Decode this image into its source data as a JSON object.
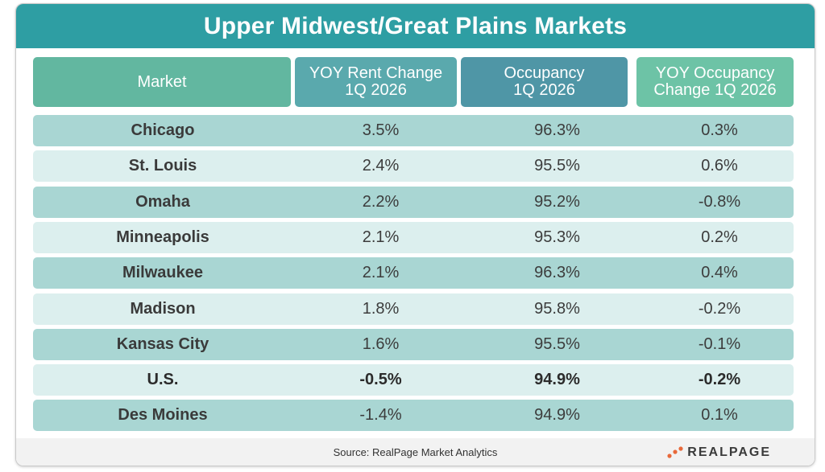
{
  "chart_data": {
    "type": "table",
    "title": "Upper Midwest/Great Plains Markets",
    "columns": [
      "Market",
      "YOY Rent Change\n1Q 2026",
      "Occupancy\n1Q 2026",
      "YOY Occupancy\nChange 1Q 2026"
    ],
    "rows": [
      {
        "market": "Chicago",
        "rent_change": "3.5%",
        "occupancy": "96.3%",
        "occ_change": "0.3%"
      },
      {
        "market": "St. Louis",
        "rent_change": "2.4%",
        "occupancy": "95.5%",
        "occ_change": "0.6%"
      },
      {
        "market": "Omaha",
        "rent_change": "2.2%",
        "occupancy": "95.2%",
        "occ_change": "-0.8%"
      },
      {
        "market": "Minneapolis",
        "rent_change": "2.1%",
        "occupancy": "95.3%",
        "occ_change": "0.2%"
      },
      {
        "market": "Milwaukee",
        "rent_change": "2.1%",
        "occupancy": "96.3%",
        "occ_change": "0.4%"
      },
      {
        "market": "Madison",
        "rent_change": "1.8%",
        "occupancy": "95.8%",
        "occ_change": "-0.2%"
      },
      {
        "market": "Kansas City",
        "rent_change": "1.6%",
        "occupancy": "95.5%",
        "occ_change": "-0.1%"
      },
      {
        "market": "U.S.",
        "rent_change": "-0.5%",
        "occupancy": "94.9%",
        "occ_change": "-0.2%"
      },
      {
        "market": "Des Moines",
        "rent_change": "-1.4%",
        "occupancy": "94.9%",
        "occ_change": "0.1%"
      }
    ],
    "highlight_row": "U.S."
  },
  "footer": {
    "source": "Source:  RealPage Market Analytics",
    "logo_text": "REALPAGE"
  },
  "colors": {
    "title_bg": "#2e9ea3",
    "header_market": "#62b7a0",
    "header_rent": "#5aa9ad",
    "header_occupancy": "#4f96a6",
    "header_occ_change": "#6dc3a6",
    "row_dark": "#a9d6d3",
    "row_light": "#dcefee",
    "logo_accent": "#e8693a"
  }
}
